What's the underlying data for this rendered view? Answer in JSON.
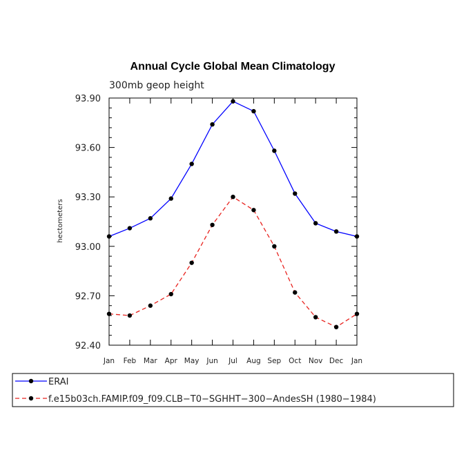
{
  "chart_data": {
    "type": "line",
    "title": "Annual Cycle Global Mean Climatology",
    "subtitle": "300mb geop height",
    "xlabel": "",
    "ylabel": "hectometers",
    "categories": [
      "Jan",
      "Feb",
      "Mar",
      "Apr",
      "May",
      "Jun",
      "Jul",
      "Aug",
      "Sep",
      "Oct",
      "Nov",
      "Dec",
      "Jan"
    ],
    "ylim": [
      92.4,
      93.9
    ],
    "yticks": [
      "92.40",
      "92.70",
      "93.00",
      "93.30",
      "93.60",
      "93.90"
    ],
    "legend_position": "bottom",
    "grid": false,
    "series": [
      {
        "name": "ERAI",
        "color": "#0000ff",
        "dash": "solid",
        "marker": "filled-circle",
        "values": [
          93.06,
          93.11,
          93.17,
          93.29,
          93.5,
          93.74,
          93.88,
          93.82,
          93.58,
          93.32,
          93.14,
          93.09,
          93.06
        ]
      },
      {
        "name": "f.e15b03ch.FAMIP.f09_f09.CLB−T0−SGHHT−300−AndesSH (1980−1984)",
        "color": "#e8221e",
        "dash": "dashed",
        "marker": "filled-circle",
        "values": [
          92.59,
          92.58,
          92.64,
          92.71,
          92.9,
          93.13,
          93.3,
          93.22,
          93.0,
          92.72,
          92.57,
          92.51,
          92.59
        ]
      }
    ]
  }
}
